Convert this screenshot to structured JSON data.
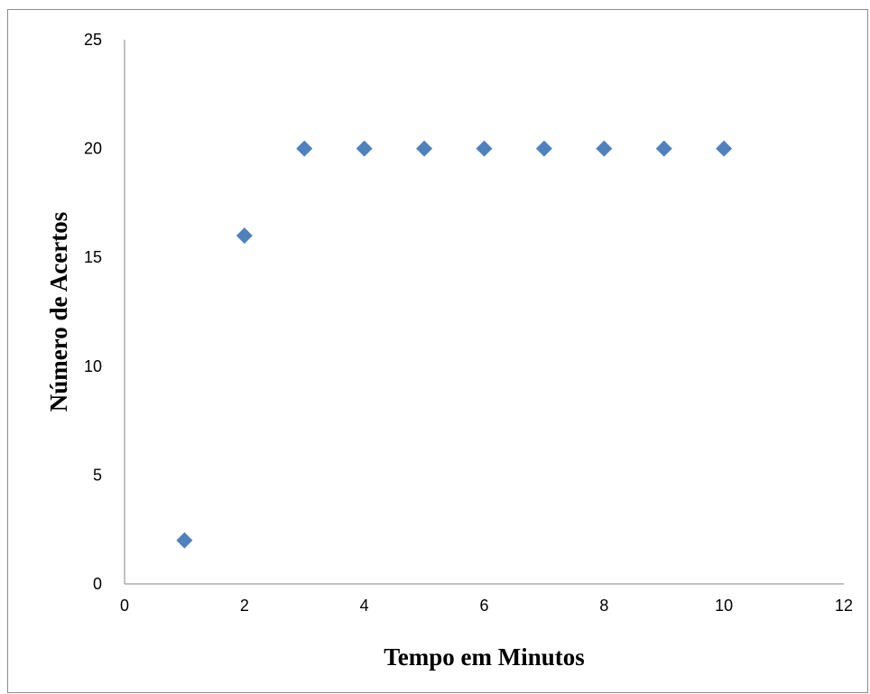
{
  "chart_data": {
    "type": "scatter",
    "title": "",
    "xlabel": "Tempo em Minutos",
    "ylabel": "Número de Acertos",
    "xlim": [
      0,
      12
    ],
    "ylim": [
      0,
      25
    ],
    "x_ticks": [
      0,
      2,
      4,
      6,
      8,
      10,
      12
    ],
    "y_ticks": [
      0,
      5,
      10,
      15,
      20,
      25
    ],
    "grid": false,
    "legend": "none",
    "marker": "diamond",
    "colors": {
      "marker": "#4f81bd",
      "axis": "#868686",
      "frame": "#8c8c8c"
    },
    "series": [
      {
        "x": [
          1,
          2,
          3,
          4,
          5,
          6,
          7,
          8,
          9,
          10
        ],
        "y": [
          2,
          16,
          20,
          20,
          20,
          20,
          20,
          20,
          20,
          20
        ]
      }
    ]
  }
}
